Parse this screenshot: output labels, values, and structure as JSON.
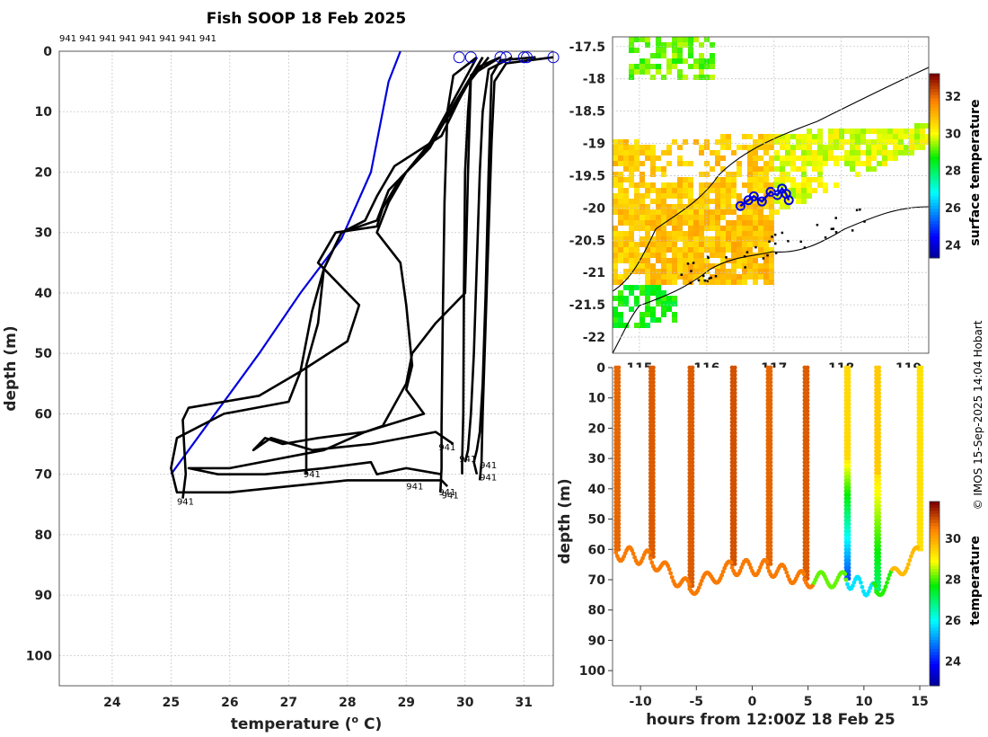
{
  "credit": "© IMOS 15-Sep-2025 14:04 Hobart",
  "chart_data": [
    {
      "id": "profiles",
      "type": "line",
      "title": "Fish SOOP 18 Feb 2025",
      "xlabel": "temperature (",
      "xlabel_sup": "o",
      "xlabel_end": " C)",
      "ylabel": "depth (m)",
      "xlim": [
        23.1,
        31.5
      ],
      "ylim": [
        105,
        0
      ],
      "y_reversed": true,
      "xticks": [
        "24",
        "25",
        "26",
        "27",
        "28",
        "29",
        "30",
        "31"
      ],
      "yticks": [
        "0",
        "10",
        "20",
        "30",
        "40",
        "50",
        "60",
        "70",
        "80",
        "90",
        "100"
      ],
      "grid": true,
      "top_label": "941 941 941 941 941 941 941 941",
      "surface_markers_x": [
        29.9,
        30.1,
        30.6,
        30.7,
        31.0,
        31.05,
        31.5
      ],
      "series": [
        {
          "name": "climatology",
          "color": "#0000dd",
          "x": [
            28.9,
            28.7,
            28.6,
            28.4,
            27.9,
            27.2,
            26.5,
            25.0
          ],
          "y": [
            0,
            5,
            10,
            20,
            31,
            40,
            50,
            70
          ]
        },
        {
          "name": "941",
          "color": "#000000",
          "x": [
            31.5,
            30.7,
            30.5,
            30.45,
            30.4,
            30.35,
            30.3,
            30.28,
            30.25
          ],
          "y": [
            1,
            2,
            5,
            15,
            30,
            45,
            60,
            68,
            71
          ]
        },
        {
          "name": "941",
          "color": "#000000",
          "x": [
            31.2,
            30.6,
            30.45,
            30.4,
            30.35,
            30.3,
            30.25,
            30.2,
            30.15,
            30.2
          ],
          "y": [
            1,
            1.5,
            4,
            20,
            40,
            55,
            63,
            66,
            68,
            70
          ]
        },
        {
          "name": "941",
          "color": "#000000",
          "x": [
            30.8,
            30.4,
            30.3,
            30.25,
            30.2,
            30.15,
            30.1,
            30.05,
            30.0
          ],
          "y": [
            1,
            3,
            10,
            20,
            35,
            50,
            60,
            66,
            68
          ]
        },
        {
          "name": "941",
          "color": "#000000",
          "x": [
            30.6,
            30.1,
            30.05,
            30.0,
            29.98,
            29.97,
            29.95,
            29.95
          ],
          "y": [
            1,
            4,
            10,
            20,
            40,
            60,
            68,
            70
          ]
        },
        {
          "name": "941",
          "color": "#000000",
          "x": [
            30.2,
            29.8,
            29.7,
            29.65,
            29.62,
            29.6,
            29.6,
            29.58
          ],
          "y": [
            1,
            4,
            10,
            25,
            45,
            62,
            69,
            73
          ]
        },
        {
          "name": "941",
          "color": "#000000",
          "x": [
            30.4,
            30.0,
            29.6,
            28.8,
            28.5,
            28.3,
            27.9,
            27.6,
            27.5,
            27.3,
            27.3
          ],
          "y": [
            1,
            6,
            14,
            19,
            24,
            28,
            30,
            36,
            45,
            52,
            70
          ]
        },
        {
          "name": "941",
          "color": "#000000",
          "x": [
            30.3,
            29.9,
            29.5,
            29.0,
            28.7,
            28.5,
            27.9,
            27.6,
            27.4,
            27.2,
            26.5,
            25.3,
            25.2,
            25.25,
            25.2
          ],
          "y": [
            1,
            8,
            14,
            20,
            23,
            28,
            30,
            36,
            43,
            53,
            57,
            59,
            61,
            70,
            74
          ]
        },
        {
          "name": "941",
          "color": "#000000",
          "x": [
            30.2,
            29.7,
            29.3,
            28.9,
            28.6,
            28.5,
            27.8,
            27.5,
            28.2,
            28.0,
            27.2,
            27.0,
            25.9,
            25.1,
            25.0,
            25.1,
            26.0,
            27.0,
            28.0,
            29.6,
            29.7
          ],
          "y": [
            1,
            10,
            17,
            21,
            26,
            29,
            30,
            35,
            42,
            48,
            53,
            58,
            60,
            64,
            69,
            73,
            73,
            72,
            71,
            71,
            72
          ]
        },
        {
          "name": "941",
          "color": "#000000",
          "x": [
            30.3,
            29.8,
            29.4,
            29.0,
            28.7,
            28.5,
            28.9,
            29.0,
            29.1,
            29.0,
            29.3,
            28.3,
            27.5,
            26.9,
            26.6,
            26.4,
            26.7,
            27.4,
            28.4,
            29.5,
            29.8
          ],
          "y": [
            1,
            9,
            16,
            20,
            25,
            30,
            35,
            42,
            52,
            56,
            60,
            63,
            64,
            65,
            64,
            66,
            64,
            66,
            65,
            63,
            65
          ]
        },
        {
          "name": "941",
          "color": "#000000",
          "x": [
            30.6,
            30.25,
            30.1,
            30.05,
            30.0,
            29.5,
            29.1,
            29.0,
            28.6,
            28.3,
            27.6,
            26.0,
            25.3,
            25.8,
            26.6,
            27.6,
            28.4,
            28.5,
            29.0,
            29.6
          ],
          "y": [
            1,
            2.5,
            4,
            20,
            40,
            45,
            50,
            55,
            62,
            63,
            66,
            69,
            69,
            70,
            70,
            69,
            68,
            70,
            69,
            70
          ]
        }
      ],
      "point_labels": [
        {
          "text": "941",
          "x": 29.55,
          "y": 66
        },
        {
          "text": "941",
          "x": 30.25,
          "y": 69
        },
        {
          "text": "941",
          "x": 30.25,
          "y": 71
        },
        {
          "text": "941",
          "x": 29.9,
          "y": 68
        },
        {
          "text": "941",
          "x": 29.6,
          "y": 74
        },
        {
          "text": "941",
          "x": 29.55,
          "y": 73.5
        },
        {
          "text": "941",
          "x": 29.0,
          "y": 72.5
        },
        {
          "text": "941",
          "x": 27.25,
          "y": 70.5
        },
        {
          "text": "941",
          "x": 25.1,
          "y": 75
        }
      ]
    },
    {
      "id": "map",
      "type": "heatmap",
      "title": "",
      "xticks": [
        "115",
        "116",
        "117",
        "118",
        "119"
      ],
      "yticks": [
        "-17.5",
        "-18",
        "-18.5",
        "-19",
        "-19.5",
        "-20",
        "-20.5",
        "-21",
        "-21.5",
        "-22"
      ],
      "xlim": [
        114.6,
        119.3
      ],
      "ylim": [
        -22.25,
        -17.35
      ],
      "colorbar": {
        "label": "surface temperature",
        "ticks": [
          "24",
          "26",
          "28",
          "30",
          "32"
        ],
        "range": [
          23.3,
          33.2
        ]
      },
      "track": {
        "lon": [
          116.5,
          116.62,
          116.7,
          116.82,
          116.95,
          117.05,
          117.12,
          117.18,
          117.22
        ],
        "lat": [
          -19.97,
          -19.88,
          -19.82,
          -19.9,
          -19.75,
          -19.8,
          -19.7,
          -19.78,
          -19.88
        ]
      }
    },
    {
      "id": "section",
      "type": "scatter",
      "xlabel": "hours from 12:00Z 18 Feb 25",
      "ylabel": "depth (m)",
      "xlim": [
        -12.5,
        15.8
      ],
      "ylim": [
        105,
        0
      ],
      "y_reversed": true,
      "xticks": [
        "-10",
        "-5",
        "0",
        "5",
        "10",
        "15"
      ],
      "yticks": [
        "0",
        "10",
        "20",
        "30",
        "40",
        "50",
        "60",
        "70",
        "80",
        "90",
        "100"
      ],
      "colorbar": {
        "label": "temperature",
        "ticks": [
          "24",
          "26",
          "28",
          "30"
        ],
        "range": [
          22.8,
          31.8
        ]
      },
      "casts_hours": [
        -12.2,
        -9.1,
        -5.6,
        -1.8,
        1.4,
        4.7,
        8.4,
        11.1,
        14.9
      ],
      "bottom_depths": [
        61,
        63,
        73,
        66,
        66,
        70,
        70,
        74,
        61
      ]
    }
  ]
}
